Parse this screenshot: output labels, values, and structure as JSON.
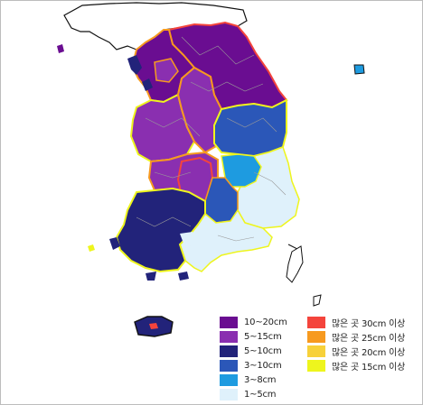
{
  "legend": {
    "snowfall_fill": [
      {
        "label": "10~20cm",
        "color": "#6a0d91"
      },
      {
        "label": "5~15cm",
        "color": "#8a2fb0"
      },
      {
        "label": "5~10cm",
        "color": "#22237a"
      },
      {
        "label": "3~10cm",
        "color": "#2b57b8"
      },
      {
        "label": "3~8cm",
        "color": "#1e9be0"
      },
      {
        "label": "1~5cm",
        "color": "#dff1fb"
      }
    ],
    "max_outline": [
      {
        "label": "많은 곳 30cm 이상",
        "color": "#f4443c"
      },
      {
        "label": "많은 곳 25cm 이상",
        "color": "#f79a1f"
      },
      {
        "label": "많은 곳 20cm 이상",
        "color": "#f7d13a"
      },
      {
        "label": "많은 곳 15cm 이상",
        "color": "#eef51d"
      }
    ]
  },
  "map": {
    "colors": {
      "north_land": "#ffffff",
      "coast_line": "#111111",
      "district_line": "#9a9a9a"
    }
  }
}
